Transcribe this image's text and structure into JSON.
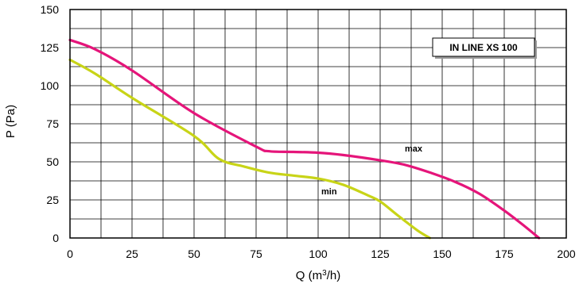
{
  "chart_data": {
    "type": "line",
    "title": "IN LINE XS 100",
    "xlabel": "Q (m³/h)",
    "xlabel_base": "Q (m",
    "xlabel_sup": "3",
    "xlabel_tail": "/h)",
    "ylabel": "P (Pa)",
    "xlim": [
      0,
      200
    ],
    "ylim": [
      0,
      150
    ],
    "x_ticks": [
      0,
      25,
      50,
      75,
      100,
      125,
      150,
      175,
      200
    ],
    "y_ticks": [
      0,
      25,
      50,
      75,
      100,
      125,
      150
    ],
    "grid": true,
    "series": [
      {
        "name": "max",
        "color": "#e5157a",
        "x": [
          0,
          10,
          25,
          50,
          75,
          80,
          90,
          100,
          110,
          125,
          135,
          145,
          155,
          165,
          175,
          183,
          189
        ],
        "y": [
          130,
          124,
          110,
          82,
          60,
          57,
          56.5,
          56,
          54.5,
          51,
          48,
          43,
          37,
          29,
          18,
          8,
          0
        ]
      },
      {
        "name": "min",
        "color": "#c8d417",
        "x": [
          0,
          10,
          25,
          50,
          60,
          70,
          80,
          90,
          100,
          110,
          120,
          125,
          132,
          140,
          145
        ],
        "y": [
          117,
          108,
          92,
          67,
          52,
          47,
          43,
          41,
          39,
          35,
          28,
          24,
          15,
          5,
          0
        ]
      }
    ]
  }
}
